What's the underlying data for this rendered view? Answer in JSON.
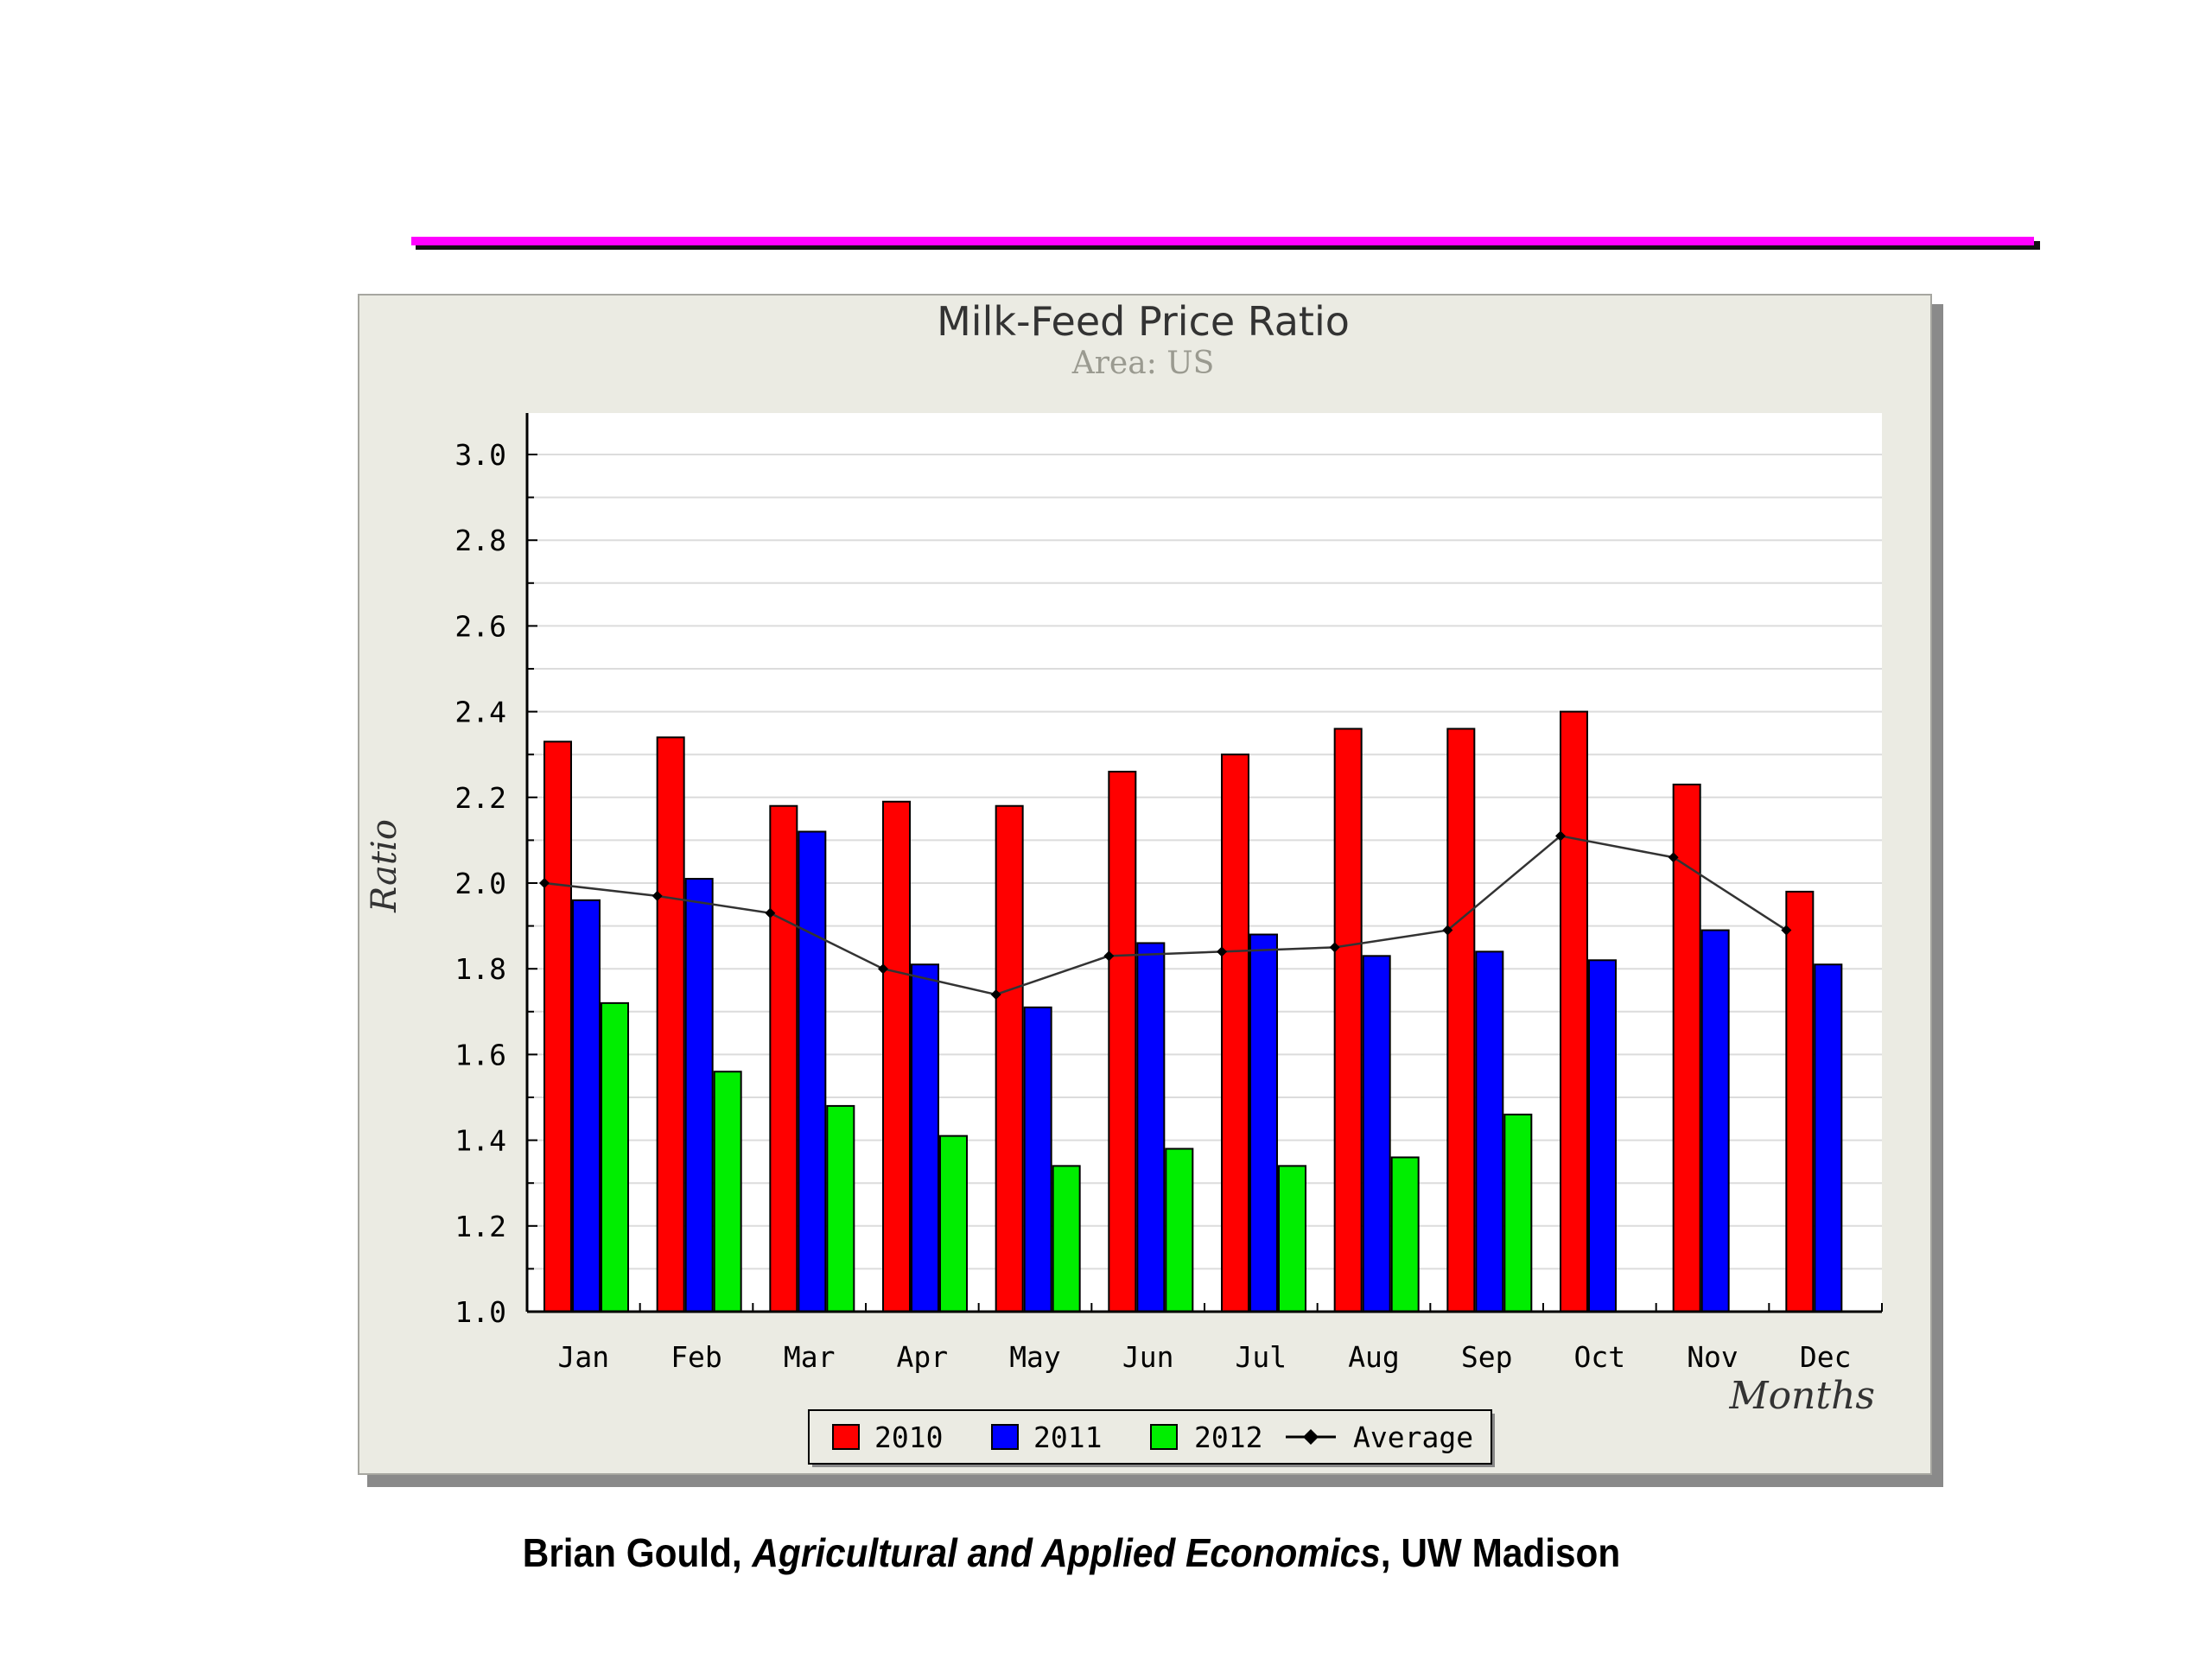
{
  "chart_data": {
    "type": "bar",
    "title": "Milk-Feed Price Ratio",
    "subtitle": "Area: US",
    "xlabel": "Months",
    "ylabel": "Ratio",
    "ylim": [
      1.0,
      3.0
    ],
    "yticks": [
      "1.0",
      "1.2",
      "1.4",
      "1.6",
      "1.8",
      "2.0",
      "2.2",
      "2.4",
      "2.6",
      "2.8",
      "3.0"
    ],
    "categories": [
      "Jan",
      "Feb",
      "Mar",
      "Apr",
      "May",
      "Jun",
      "Jul",
      "Aug",
      "Sep",
      "Oct",
      "Nov",
      "Dec"
    ],
    "grid": true,
    "legend_position": "bottom-center",
    "series": [
      {
        "name": "2010",
        "type": "bar",
        "color": "#ff0000",
        "values": [
          2.33,
          2.34,
          2.18,
          2.19,
          2.18,
          2.26,
          2.3,
          2.36,
          2.36,
          2.4,
          2.23,
          1.98
        ]
      },
      {
        "name": "2011",
        "type": "bar",
        "color": "#0000ff",
        "values": [
          1.96,
          2.01,
          2.12,
          1.81,
          1.71,
          1.86,
          1.88,
          1.83,
          1.84,
          1.82,
          1.89,
          1.81
        ]
      },
      {
        "name": "2012",
        "type": "bar",
        "color": "#00ee00",
        "values": [
          1.72,
          1.56,
          1.48,
          1.41,
          1.34,
          1.38,
          1.34,
          1.36,
          1.46,
          null,
          null,
          null
        ]
      },
      {
        "name": "Average",
        "type": "line",
        "color": "#000000",
        "values": [
          2.0,
          1.97,
          1.93,
          1.8,
          1.74,
          1.83,
          1.84,
          1.85,
          1.89,
          2.11,
          2.06,
          1.89
        ]
      }
    ]
  },
  "footer": {
    "author": "Brian Gould, ",
    "department": "Agricultural and Applied Economics",
    "institution": ", UW Madison"
  }
}
